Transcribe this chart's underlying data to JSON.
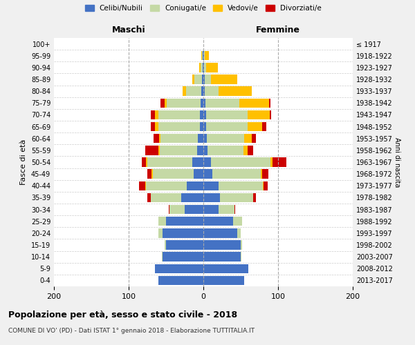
{
  "age_groups": [
    "0-4",
    "5-9",
    "10-14",
    "15-19",
    "20-24",
    "25-29",
    "30-34",
    "35-39",
    "40-44",
    "45-49",
    "50-54",
    "55-59",
    "60-64",
    "65-69",
    "70-74",
    "75-79",
    "80-84",
    "85-89",
    "90-94",
    "95-99",
    "100+"
  ],
  "birth_years": [
    "2013-2017",
    "2008-2012",
    "2003-2007",
    "1998-2002",
    "1993-1997",
    "1988-1992",
    "1983-1987",
    "1978-1982",
    "1973-1977",
    "1968-1972",
    "1963-1967",
    "1958-1962",
    "1953-1957",
    "1948-1952",
    "1943-1947",
    "1938-1942",
    "1933-1937",
    "1928-1932",
    "1923-1927",
    "1918-1922",
    "≤ 1917"
  ],
  "maschi_celibi": [
    60,
    65,
    55,
    50,
    55,
    50,
    25,
    30,
    22,
    13,
    15,
    8,
    7,
    5,
    5,
    4,
    3,
    2,
    1,
    1,
    0
  ],
  "maschi_coniugati": [
    0,
    0,
    1,
    2,
    5,
    10,
    20,
    40,
    55,
    55,
    60,
    50,
    50,
    55,
    55,
    45,
    20,
    10,
    3,
    1,
    0
  ],
  "maschi_vedovi": [
    0,
    0,
    0,
    0,
    0,
    0,
    0,
    0,
    1,
    1,
    2,
    2,
    2,
    5,
    5,
    3,
    5,
    3,
    2,
    1,
    0
  ],
  "maschi_divorziati": [
    0,
    0,
    0,
    0,
    0,
    0,
    1,
    5,
    8,
    6,
    5,
    18,
    8,
    5,
    5,
    5,
    0,
    0,
    0,
    0,
    0
  ],
  "femmine_celibi": [
    55,
    60,
    50,
    50,
    45,
    40,
    20,
    22,
    20,
    12,
    10,
    6,
    5,
    4,
    4,
    3,
    2,
    2,
    1,
    1,
    0
  ],
  "femmine_coniugati": [
    0,
    0,
    1,
    2,
    5,
    12,
    22,
    45,
    60,
    65,
    80,
    48,
    50,
    55,
    55,
    45,
    18,
    8,
    3,
    1,
    0
  ],
  "femmine_vedovi": [
    0,
    0,
    0,
    0,
    0,
    0,
    0,
    0,
    1,
    2,
    3,
    5,
    10,
    20,
    30,
    40,
    45,
    35,
    15,
    5,
    0
  ],
  "femmine_divorziati": [
    0,
    0,
    0,
    0,
    0,
    0,
    1,
    3,
    5,
    8,
    18,
    8,
    5,
    5,
    2,
    2,
    0,
    0,
    0,
    0,
    0
  ],
  "color_celibi": "#4472c4",
  "color_coniugati": "#c5d9a5",
  "color_vedovi": "#ffc000",
  "color_divorziati": "#cc0000",
  "xlim": 200,
  "title": "Popolazione per età, sesso e stato civile - 2018",
  "subtitle": "COMUNE DI VO' (PD) - Dati ISTAT 1° gennaio 2018 - Elaborazione TUTTITALIA.IT",
  "ylabel": "Fasce di età",
  "ylabel_right": "Anni di nascita",
  "bg_color": "#f0f0f0",
  "plot_bg": "#ffffff"
}
